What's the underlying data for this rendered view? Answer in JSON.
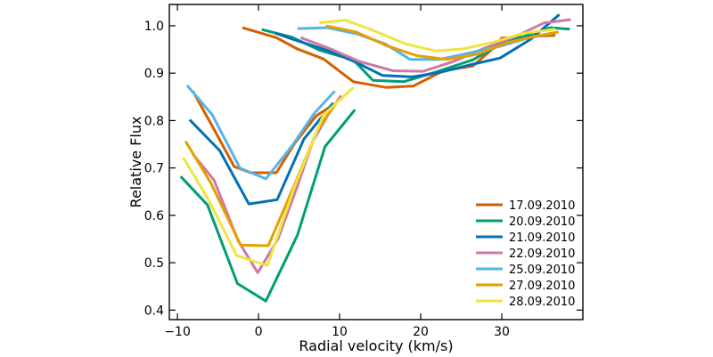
{
  "chart_data": {
    "type": "line",
    "xlabel": "Radial velocity (km/s)",
    "ylabel": "Relative Flux",
    "xlim": [
      -11,
      40
    ],
    "ylim": [
      0.38,
      1.045
    ],
    "xticks": [
      -10,
      0,
      10,
      20,
      30
    ],
    "xtick_labels": [
      "−10",
      "0",
      "10",
      "20",
      "30"
    ],
    "yticks": [
      0.4,
      0.5,
      0.6,
      0.7,
      0.8,
      0.9,
      1.0
    ],
    "ytick_labels": [
      "0.4",
      "0.5",
      "0.6",
      "0.7",
      "0.8",
      "0.9",
      "1.0"
    ],
    "legend_position": "lower-right",
    "grid": false,
    "series": [
      {
        "name": "17.09.2010",
        "color": "#d55e00",
        "segments": [
          [
            [
              -8.1,
              0.862
            ],
            [
              -5.6,
              0.785
            ],
            [
              -3.0,
              0.703
            ],
            [
              -1.0,
              0.69
            ],
            [
              2.2,
              0.69
            ],
            [
              4.5,
              0.753
            ],
            [
              7.1,
              0.81
            ],
            [
              9.4,
              0.835
            ]
          ],
          [
            [
              -2.0,
              0.996
            ],
            [
              2.2,
              0.975
            ],
            [
              4.8,
              0.951
            ],
            [
              8.0,
              0.93
            ],
            [
              11.7,
              0.882
            ],
            [
              15.7,
              0.87
            ],
            [
              19.1,
              0.873
            ],
            [
              22.8,
              0.905
            ],
            [
              26.4,
              0.915
            ],
            [
              28.5,
              0.946
            ],
            [
              30.0,
              0.974
            ],
            [
              36.6,
              0.98
            ]
          ]
        ]
      },
      {
        "name": "20.09.2010",
        "color": "#009e73",
        "segments": [
          [
            [
              -9.6,
              0.682
            ],
            [
              -6.3,
              0.622
            ],
            [
              -2.6,
              0.456
            ],
            [
              0.9,
              0.419
            ],
            [
              4.8,
              0.558
            ],
            [
              8.2,
              0.745
            ],
            [
              11.9,
              0.823
            ]
          ],
          [
            [
              0.4,
              0.992
            ],
            [
              4.1,
              0.976
            ],
            [
              7.6,
              0.948
            ],
            [
              11.7,
              0.928
            ],
            [
              14.1,
              0.885
            ],
            [
              17.9,
              0.882
            ],
            [
              22.0,
              0.903
            ],
            [
              26.4,
              0.928
            ],
            [
              30.0,
              0.962
            ],
            [
              36.0,
              0.996
            ],
            [
              38.4,
              0.993
            ]
          ]
        ]
      },
      {
        "name": "21.09.2010",
        "color": "#0072b2",
        "segments": [
          [
            [
              -8.5,
              0.802
            ],
            [
              -4.8,
              0.737
            ],
            [
              -1.2,
              0.624
            ],
            [
              2.3,
              0.633
            ],
            [
              5.6,
              0.761
            ],
            [
              9.2,
              0.837
            ]
          ],
          [
            [
              2.0,
              0.985
            ],
            [
              4.5,
              0.97
            ],
            [
              8.5,
              0.948
            ],
            [
              12.0,
              0.923
            ],
            [
              15.3,
              0.895
            ],
            [
              19.0,
              0.892
            ],
            [
              22.5,
              0.902
            ],
            [
              26.2,
              0.918
            ],
            [
              29.8,
              0.932
            ],
            [
              33.6,
              0.972
            ],
            [
              37.1,
              1.024
            ]
          ]
        ]
      },
      {
        "name": "22.09.2010",
        "color": "#cc79a7",
        "segments": [
          [
            [
              -8.0,
              0.727
            ],
            [
              -5.5,
              0.675
            ],
            [
              -2.5,
              0.546
            ],
            [
              -0.1,
              0.479
            ],
            [
              2.4,
              0.55
            ],
            [
              4.7,
              0.657
            ],
            [
              6.7,
              0.756
            ],
            [
              8.9,
              0.822
            ],
            [
              10.2,
              0.853
            ]
          ],
          [
            [
              5.2,
              0.975
            ],
            [
              8.9,
              0.951
            ],
            [
              12.4,
              0.925
            ],
            [
              16.6,
              0.905
            ],
            [
              20.3,
              0.904
            ],
            [
              24.1,
              0.925
            ],
            [
              27.9,
              0.953
            ],
            [
              31.5,
              0.976
            ],
            [
              35.2,
              1.006
            ],
            [
              38.5,
              1.013
            ]
          ]
        ]
      },
      {
        "name": "25.09.2010",
        "color": "#56b4e9",
        "segments": [
          [
            [
              -8.8,
              0.874
            ],
            [
              -5.7,
              0.812
            ],
            [
              -2.3,
              0.7
            ],
            [
              0.9,
              0.677
            ],
            [
              4.1,
              0.746
            ],
            [
              6.9,
              0.816
            ],
            [
              9.4,
              0.862
            ]
          ],
          [
            [
              4.8,
              0.994
            ],
            [
              8.5,
              0.996
            ],
            [
              12.1,
              0.983
            ],
            [
              15.6,
              0.962
            ],
            [
              18.7,
              0.929
            ],
            [
              22.3,
              0.929
            ],
            [
              25.8,
              0.942
            ],
            [
              29.6,
              0.956
            ],
            [
              33.2,
              0.974
            ],
            [
              36.8,
              0.986
            ]
          ]
        ]
      },
      {
        "name": "27.09.2010",
        "color": "#e69f00",
        "segments": [
          [
            [
              -9.0,
              0.756
            ],
            [
              -5.9,
              0.669
            ],
            [
              -2.2,
              0.537
            ],
            [
              1.2,
              0.536
            ],
            [
              4.3,
              0.659
            ],
            [
              7.3,
              0.782
            ],
            [
              9.8,
              0.842
            ]
          ],
          [
            [
              8.3,
              1.0
            ],
            [
              12.0,
              0.987
            ],
            [
              15.8,
              0.958
            ],
            [
              19.5,
              0.937
            ],
            [
              23.2,
              0.929
            ],
            [
              27.0,
              0.94
            ],
            [
              30.6,
              0.964
            ],
            [
              34.4,
              0.979
            ],
            [
              37.0,
              0.987
            ]
          ]
        ]
      },
      {
        "name": "28.09.2010",
        "color": "#f0e442",
        "segments": [
          [
            [
              -9.3,
              0.722
            ],
            [
              -6.2,
              0.634
            ],
            [
              -2.7,
              0.515
            ],
            [
              1.1,
              0.494
            ],
            [
              4.5,
              0.663
            ],
            [
              8.0,
              0.812
            ],
            [
              11.7,
              0.87
            ]
          ],
          [
            [
              7.5,
              1.006
            ],
            [
              10.7,
              1.012
            ],
            [
              13.9,
              0.992
            ],
            [
              18.1,
              0.962
            ],
            [
              21.8,
              0.947
            ],
            [
              25.2,
              0.951
            ],
            [
              29.1,
              0.966
            ],
            [
              32.6,
              0.984
            ],
            [
              36.6,
              0.993
            ]
          ]
        ]
      }
    ]
  }
}
